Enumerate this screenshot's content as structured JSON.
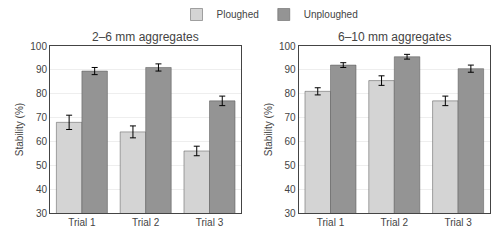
{
  "chart_data": [
    {
      "type": "bar",
      "title": "2–6 mm aggregates",
      "ylabel": "Stability (%)",
      "categories": [
        "Trial 1",
        "Trial 2",
        "Trial 3"
      ],
      "series": [
        {
          "name": "Ploughed",
          "color": "#d4d4d4",
          "values": [
            68,
            64,
            56
          ],
          "errors": [
            3,
            2.5,
            2
          ]
        },
        {
          "name": "Unploughed",
          "color": "#949494",
          "values": [
            89.5,
            91,
            77
          ],
          "errors": [
            1.5,
            1.5,
            2
          ]
        }
      ],
      "ylim": [
        30,
        100
      ],
      "yticks": [
        30,
        40,
        50,
        60,
        70,
        80,
        90,
        100
      ],
      "grid": true,
      "legend": "top"
    },
    {
      "type": "bar",
      "title": "6–10 mm aggregates",
      "ylabel": "Stability (%)",
      "categories": [
        "Trial 1",
        "Trial 2",
        "Trial 3"
      ],
      "series": [
        {
          "name": "Ploughed",
          "color": "#d4d4d4",
          "values": [
            81,
            85.5,
            77
          ],
          "errors": [
            1.5,
            2,
            2
          ]
        },
        {
          "name": "Unploughed",
          "color": "#949494",
          "values": [
            92,
            95.5,
            90.5
          ],
          "errors": [
            1,
            1,
            1.5
          ]
        }
      ],
      "ylim": [
        30,
        100
      ],
      "yticks": [
        30,
        40,
        50,
        60,
        70,
        80,
        90,
        100
      ],
      "grid": true
    }
  ]
}
